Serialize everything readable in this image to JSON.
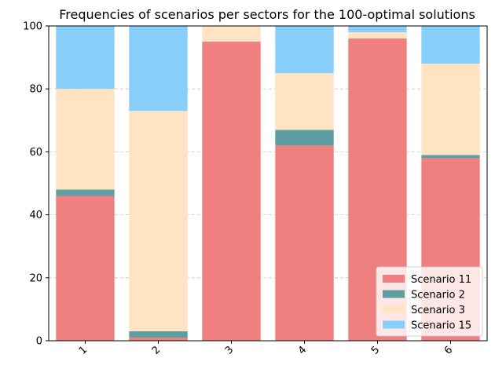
{
  "chart_data": {
    "type": "bar",
    "stacked": true,
    "title": "Frequencies of scenarios per sectors for the 100-optimal solutions",
    "xlabel": "",
    "ylabel": "",
    "categories": [
      "1",
      "2",
      "3",
      "4",
      "5",
      "6"
    ],
    "ylim": [
      0,
      100
    ],
    "yticks": [
      0,
      20,
      40,
      60,
      80,
      100
    ],
    "grid": "y-dashed",
    "legend_position": "bottom-right",
    "series": [
      {
        "name": "Scenario 11",
        "color": "#f08080",
        "values": [
          46,
          1,
          95,
          62,
          96,
          58
        ]
      },
      {
        "name": "Scenario 2",
        "color": "#5f9ea0",
        "values": [
          2,
          2,
          0,
          5,
          0,
          1
        ]
      },
      {
        "name": "Scenario 3",
        "color": "#ffe4c4",
        "values": [
          32,
          70,
          5,
          18,
          2,
          29
        ]
      },
      {
        "name": "Scenario 15",
        "color": "#87cefa",
        "values": [
          20,
          27,
          0,
          15,
          2,
          12
        ]
      }
    ]
  }
}
